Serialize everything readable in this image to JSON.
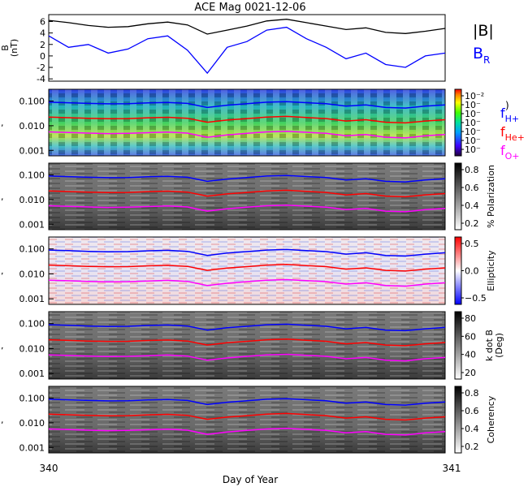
{
  "title": "ACE Mag 0021-12-06",
  "xaxis": {
    "label": "Day of Year",
    "start_label": "340",
    "end_label": "341",
    "range": [
      340,
      341
    ]
  },
  "colors": {
    "H": "#0000ff",
    "He": "#ff0000",
    "O": "#ff00ff",
    "B": "#000000",
    "BR": "#0000ff"
  },
  "chart_data": [
    {
      "type": "line",
      "ylabel": "B (nT)",
      "ylabel_lines": [
        "B",
        "(nT)"
      ],
      "ylim": [
        -4.4,
        7.2
      ],
      "yticks": [
        -4,
        -2,
        0,
        2,
        4,
        6
      ],
      "x": [
        340.0,
        340.05,
        340.1,
        340.15,
        340.2,
        340.25,
        340.3,
        340.35,
        340.4,
        340.45,
        340.5,
        340.55,
        340.6,
        340.65,
        340.7,
        340.75,
        340.8,
        340.85,
        340.9,
        340.95,
        341.0
      ],
      "series": [
        {
          "name": "|B|",
          "values": [
            6.2,
            5.8,
            5.3,
            5.0,
            5.1,
            5.6,
            5.9,
            5.4,
            3.8,
            4.5,
            5.2,
            6.1,
            6.4,
            5.8,
            5.2,
            4.6,
            4.9,
            4.1,
            3.9,
            4.3,
            4.8
          ]
        },
        {
          "name": "B_R",
          "values": [
            3.5,
            1.5,
            2.0,
            0.5,
            1.2,
            3.0,
            3.5,
            1.0,
            -3.0,
            1.5,
            2.5,
            4.5,
            5.0,
            3.0,
            1.5,
            -0.5,
            0.5,
            -1.5,
            -2.0,
            0.0,
            0.5
          ]
        }
      ],
      "legend": [
        {
          "label": "|B|"
        },
        {
          "label": "B",
          "sub": "R"
        }
      ]
    },
    {
      "type": "heatmap",
      "ylabel": "Frequency (Hz)",
      "colorbar_label": "",
      "colorbar_ticks": [
        "10⁻²",
        "10⁻",
        "10⁻",
        "10⁻",
        "10⁻",
        "10⁻",
        "10⁻"
      ],
      "colorbar_end": ")",
      "legend": [
        {
          "label": "f",
          "sub": "H+"
        },
        {
          "label": "f",
          "sub": "He+"
        },
        {
          "label": "f",
          "sub": "O+"
        }
      ]
    },
    {
      "type": "heatmap",
      "ylabel": "Frequency (Hz)",
      "colorbar_label": "% Polarization",
      "colorbar_ticks": [
        "0.8",
        "0.6",
        "0.4",
        "0.2"
      ]
    },
    {
      "type": "heatmap",
      "ylabel": "Frequency (Hz)",
      "colorbar_label": "Ellipticity",
      "colorbar_ticks": [
        "0.5",
        "0.0",
        "−0.5"
      ]
    },
    {
      "type": "heatmap",
      "ylabel": "Frequency (Hz)",
      "colorbar_label": "k dot B (Deg)",
      "colorbar_label_lines": [
        "k dot B",
        "(Deg)"
      ],
      "colorbar_ticks": [
        "80",
        "60",
        "40",
        "20"
      ]
    },
    {
      "type": "heatmap",
      "ylabel": "Frequency (Hz)",
      "colorbar_label": "Coherency",
      "colorbar_ticks": [
        "0.8",
        "0.6",
        "0.4",
        "0.2"
      ]
    }
  ],
  "freq_axis": {
    "scale": "log",
    "ylim": [
      0.0006,
      0.3
    ],
    "yticks": [
      0.1,
      0.01,
      0.001
    ],
    "ytick_labels": [
      "0.100",
      "0.010",
      "0.001"
    ]
  },
  "gyro_lines": {
    "x": [
      340.0,
      340.05,
      340.1,
      340.15,
      340.2,
      340.25,
      340.3,
      340.35,
      340.4,
      340.45,
      340.5,
      340.55,
      340.6,
      340.65,
      340.7,
      340.75,
      340.8,
      340.85,
      340.9,
      340.95,
      341.0
    ],
    "series": [
      {
        "name": "f_H+",
        "values": [
          0.09,
          0.085,
          0.08,
          0.077,
          0.078,
          0.084,
          0.088,
          0.08,
          0.055,
          0.068,
          0.078,
          0.09,
          0.095,
          0.086,
          0.078,
          0.062,
          0.07,
          0.055,
          0.052,
          0.062,
          0.07
        ]
      },
      {
        "name": "f_He+",
        "values": [
          0.0225,
          0.0212,
          0.02,
          0.0193,
          0.0195,
          0.021,
          0.022,
          0.02,
          0.0138,
          0.017,
          0.0195,
          0.0225,
          0.0238,
          0.0215,
          0.0195,
          0.0155,
          0.0175,
          0.0138,
          0.013,
          0.0155,
          0.0175
        ]
      },
      {
        "name": "f_O+",
        "values": [
          0.0056,
          0.0053,
          0.005,
          0.0048,
          0.0049,
          0.0052,
          0.0055,
          0.005,
          0.0034,
          0.0042,
          0.0049,
          0.0056,
          0.0059,
          0.0054,
          0.0049,
          0.0039,
          0.0044,
          0.0034,
          0.0032,
          0.0039,
          0.0044
        ]
      }
    ]
  }
}
